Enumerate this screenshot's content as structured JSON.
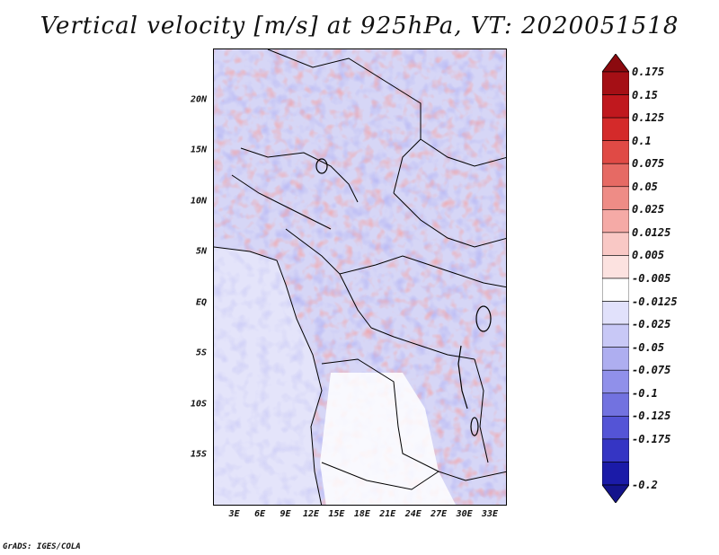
{
  "title": "Vertical velocity [m/s] at 925hPa, VT: 2020051518",
  "credit": "GrADS: IGES/COLA",
  "map": {
    "lat_ticks": [
      {
        "label": "20N",
        "lat": 20
      },
      {
        "label": "15N",
        "lat": 15
      },
      {
        "label": "10N",
        "lat": 10
      },
      {
        "label": "5N",
        "lat": 5
      },
      {
        "label": "EQ",
        "lat": 0
      },
      {
        "label": "5S",
        "lat": -5
      },
      {
        "label": "10S",
        "lat": -10
      },
      {
        "label": "15S",
        "lat": -15
      }
    ],
    "lon_ticks": [
      {
        "label": "3E",
        "lon": 3
      },
      {
        "label": "6E",
        "lon": 6
      },
      {
        "label": "9E",
        "lon": 9
      },
      {
        "label": "12E",
        "lon": 12
      },
      {
        "label": "15E",
        "lon": 15
      },
      {
        "label": "18E",
        "lon": 18
      },
      {
        "label": "21E",
        "lon": 21
      },
      {
        "label": "24E",
        "lon": 24
      },
      {
        "label": "27E",
        "lon": 27
      },
      {
        "label": "30E",
        "lon": 30
      },
      {
        "label": "33E",
        "lon": 33
      }
    ],
    "lon_range": [
      0.5,
      35
    ],
    "lat_range": [
      -20,
      25
    ]
  },
  "colorbar": {
    "levels": [
      {
        "label": "0.175",
        "color": "#a50f15"
      },
      {
        "label": "0.15",
        "color": "#c0181e"
      },
      {
        "label": "0.125",
        "color": "#d42a2a"
      },
      {
        "label": "0.1",
        "color": "#e04a45"
      },
      {
        "label": "0.075",
        "color": "#e66a64"
      },
      {
        "label": "0.05",
        "color": "#ee8c86"
      },
      {
        "label": "0.025",
        "color": "#f5aaa6"
      },
      {
        "label": "0.0125",
        "color": "#f9c8c5"
      },
      {
        "label": "0.005",
        "color": "#fce2e0"
      },
      {
        "label": "-0.005",
        "color": "#ffffff"
      },
      {
        "label": "-0.0125",
        "color": "#e1e1fb"
      },
      {
        "label": "-0.025",
        "color": "#c8c8f6"
      },
      {
        "label": "-0.05",
        "color": "#aeaef0"
      },
      {
        "label": "-0.075",
        "color": "#9090ea"
      },
      {
        "label": "-0.1",
        "color": "#7272e0"
      },
      {
        "label": "-0.125",
        "color": "#5454d6"
      },
      {
        "label": "-0.175",
        "color": "#3535c4"
      },
      {
        "label": "-0.2",
        "color": "#1b1ba8"
      }
    ],
    "max_color": "#8b0a0f",
    "min_color": "#14148c"
  }
}
